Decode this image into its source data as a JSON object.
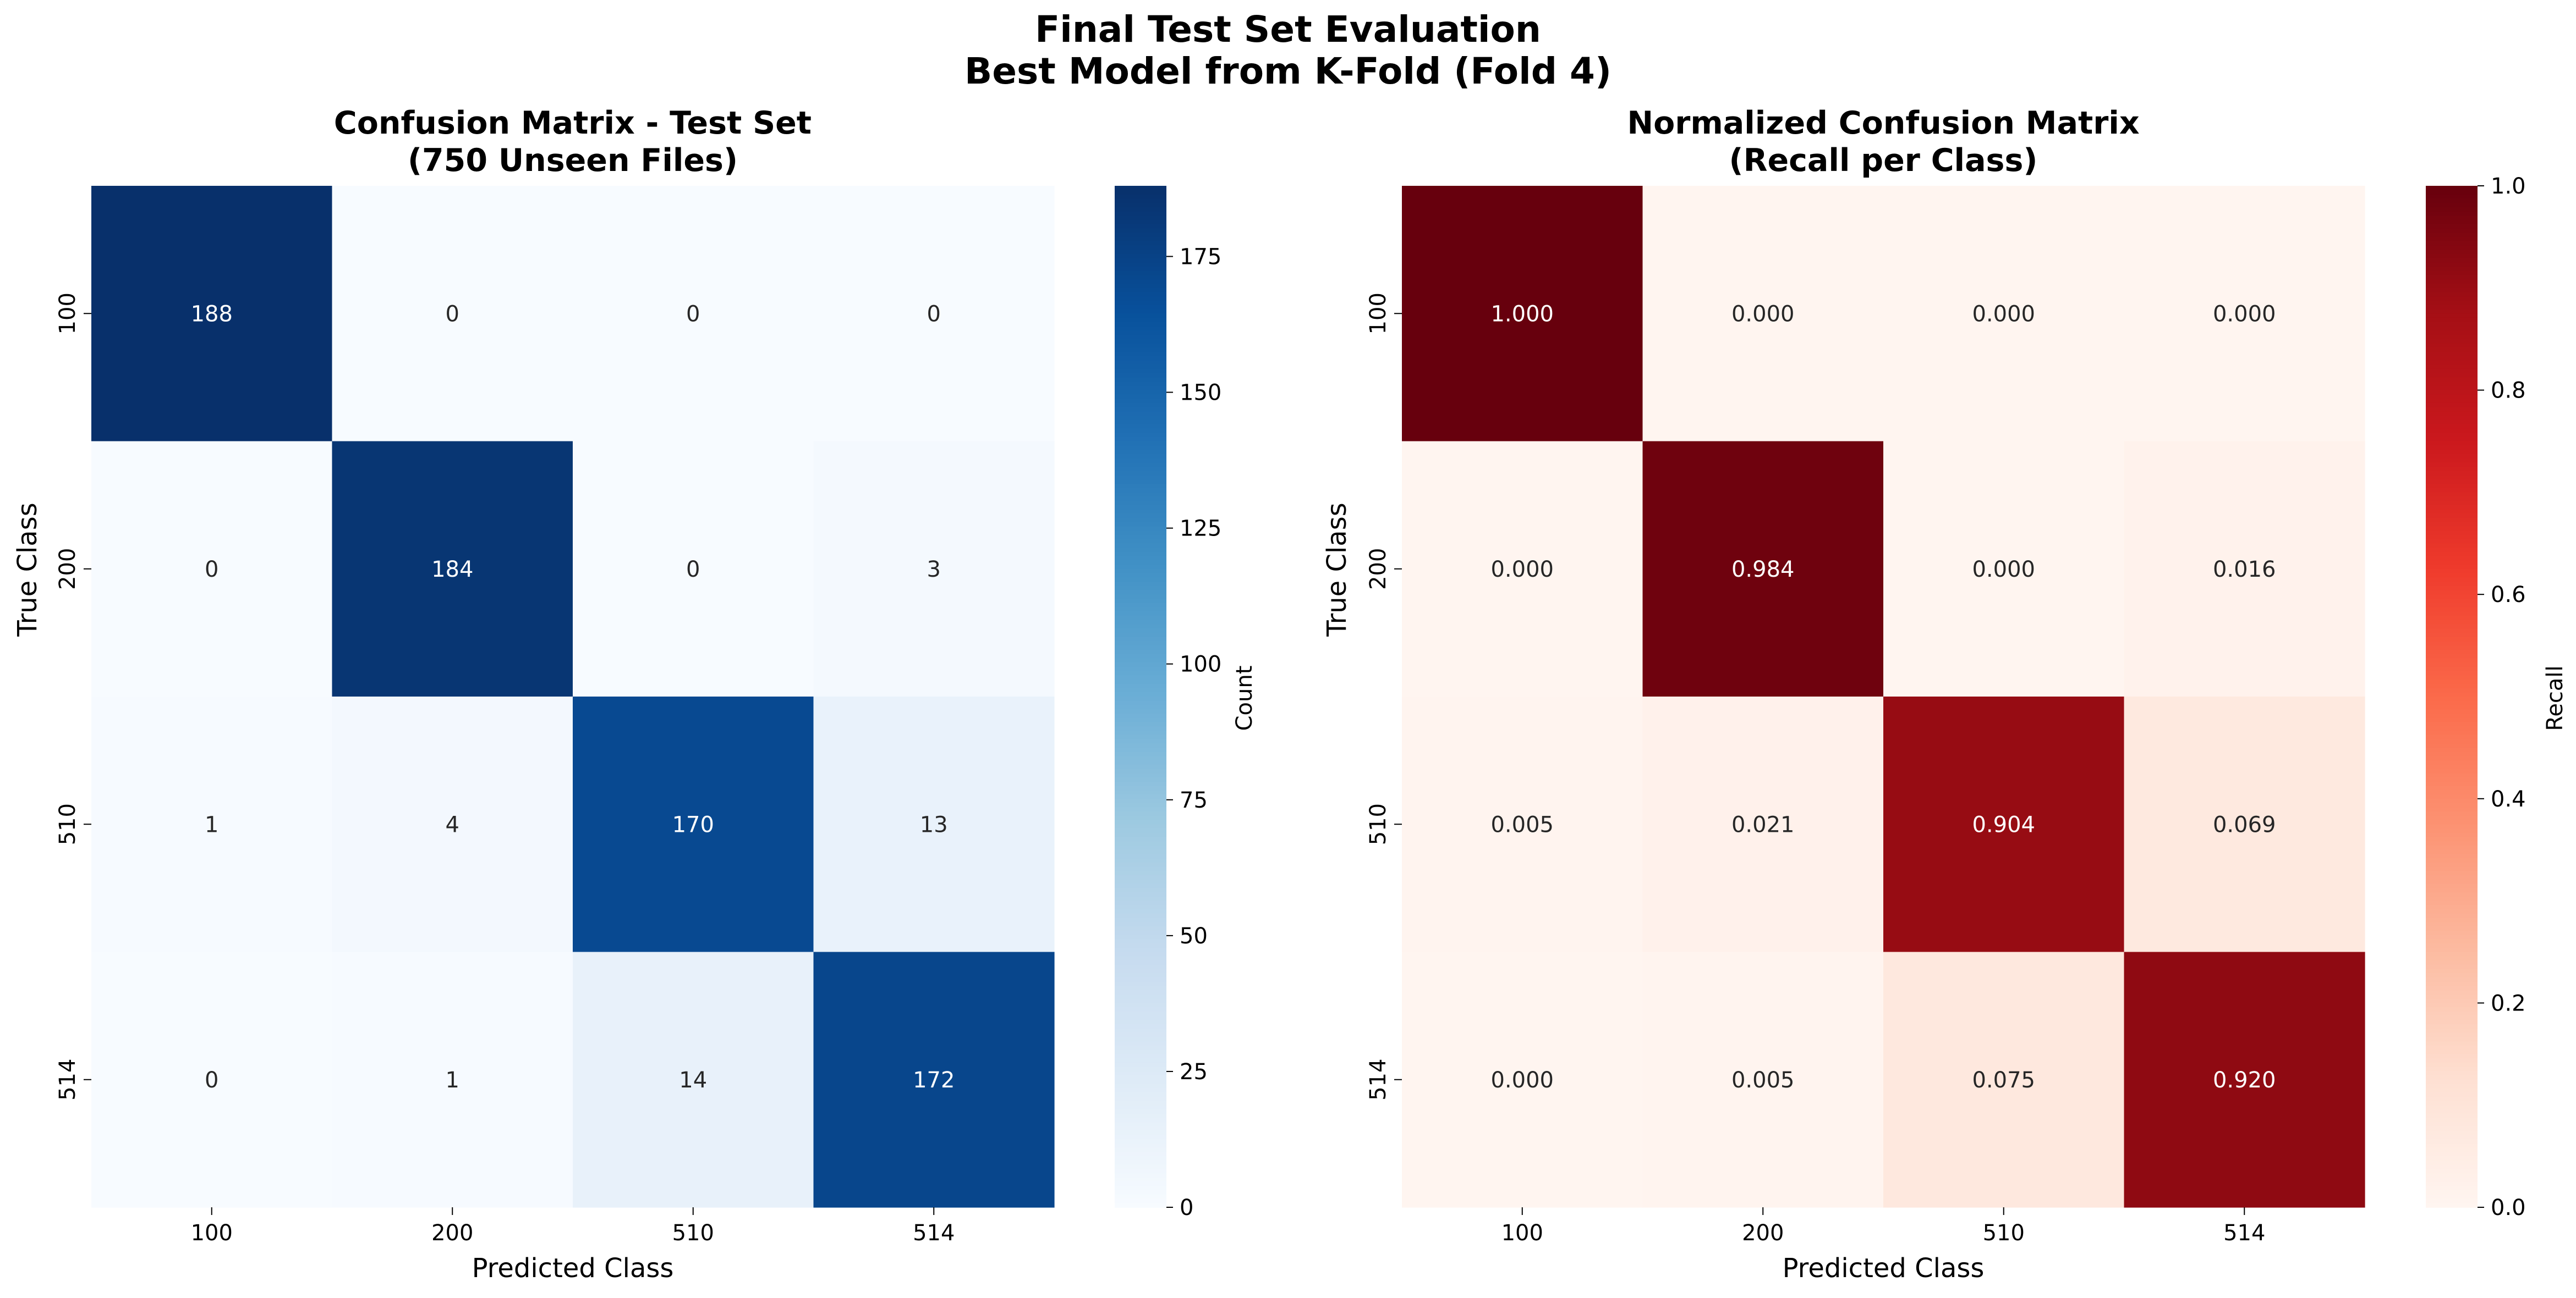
{
  "suptitle": {
    "line1": "Final Test Set Evaluation",
    "line2": "Best Model from K-Fold (Fold 4)"
  },
  "chart_data": [
    {
      "type": "heatmap",
      "title_line1": "Confusion Matrix - Test Set",
      "title_line2": "(750 Unseen Files)",
      "xlabel": "Predicted Class",
      "ylabel": "True Class",
      "x_categories": [
        "100",
        "200",
        "510",
        "514"
      ],
      "y_categories": [
        "100",
        "200",
        "510",
        "514"
      ],
      "values": [
        [
          188,
          0,
          0,
          0
        ],
        [
          0,
          184,
          0,
          3
        ],
        [
          1,
          4,
          170,
          13
        ],
        [
          0,
          1,
          14,
          172
        ]
      ],
      "cell_labels": [
        [
          "188",
          "0",
          "0",
          "0"
        ],
        [
          "0",
          "184",
          "0",
          "3"
        ],
        [
          "1",
          "4",
          "170",
          "13"
        ],
        [
          "0",
          "1",
          "14",
          "172"
        ]
      ],
      "colormap": "Blues",
      "colormap_stops": [
        "#f7fbff",
        "#deebf7",
        "#c6dbef",
        "#9ecae1",
        "#6baed6",
        "#4292c6",
        "#2171b5",
        "#08519c",
        "#08306b"
      ],
      "vmin": 0,
      "vmax": 188,
      "colorbar_label": "Count",
      "colorbar_ticks": [
        0,
        25,
        50,
        75,
        100,
        125,
        150,
        175
      ],
      "colorbar_tick_labels": [
        "0",
        "25",
        "50",
        "75",
        "100",
        "125",
        "150",
        "175"
      ]
    },
    {
      "type": "heatmap",
      "title_line1": "Normalized Confusion Matrix",
      "title_line2": "(Recall per Class)",
      "xlabel": "Predicted Class",
      "ylabel": "True Class",
      "x_categories": [
        "100",
        "200",
        "510",
        "514"
      ],
      "y_categories": [
        "100",
        "200",
        "510",
        "514"
      ],
      "values": [
        [
          1.0,
          0.0,
          0.0,
          0.0
        ],
        [
          0.0,
          0.984,
          0.0,
          0.016
        ],
        [
          0.005,
          0.021,
          0.904,
          0.069
        ],
        [
          0.0,
          0.005,
          0.075,
          0.92
        ]
      ],
      "cell_labels": [
        [
          "1.000",
          "0.000",
          "0.000",
          "0.000"
        ],
        [
          "0.000",
          "0.984",
          "0.000",
          "0.016"
        ],
        [
          "0.005",
          "0.021",
          "0.904",
          "0.069"
        ],
        [
          "0.000",
          "0.005",
          "0.075",
          "0.920"
        ]
      ],
      "colormap": "Reds",
      "colormap_stops": [
        "#fff5f0",
        "#fee0d2",
        "#fcbba1",
        "#fc9272",
        "#fb6a4a",
        "#ef3b2c",
        "#cb181d",
        "#a50f15",
        "#67000d"
      ],
      "vmin": 0,
      "vmax": 1,
      "colorbar_label": "Recall",
      "colorbar_ticks": [
        0,
        0.2,
        0.4,
        0.6,
        0.8,
        1.0
      ],
      "colorbar_tick_labels": [
        "0.0",
        "0.2",
        "0.4",
        "0.6",
        "0.8",
        "1.0"
      ]
    }
  ]
}
